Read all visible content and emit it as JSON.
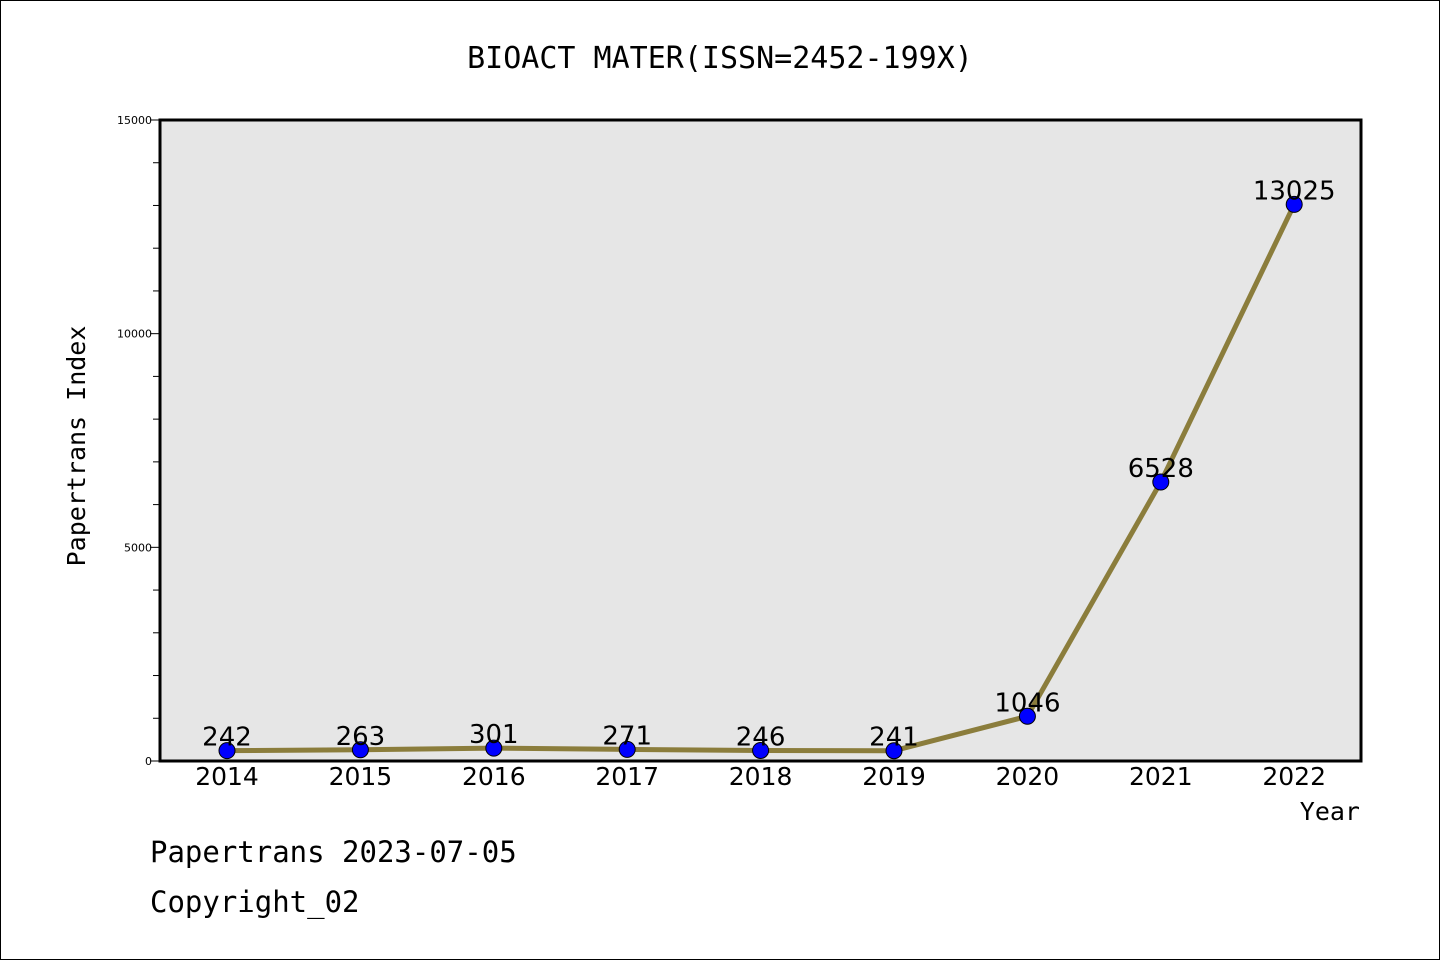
{
  "chart_data": {
    "type": "line",
    "title": "BIOACT MATER(ISSN=2452-199X)",
    "xlabel": "Year",
    "ylabel": "Papertrans Index",
    "categories": [
      "2014",
      "2015",
      "2016",
      "2017",
      "2018",
      "2019",
      "2020",
      "2021",
      "2022"
    ],
    "values": [
      242,
      263,
      301,
      271,
      246,
      241,
      1046,
      6528,
      13025
    ],
    "ylim": [
      0,
      15000
    ],
    "yticks": [
      "0",
      "5000",
      "10000",
      "15000"
    ],
    "grid": false,
    "plot_background": "#e6e6e6",
    "line_color": "#8b7d3c",
    "marker_color": "#0000ff"
  },
  "footer": {
    "line1": "Papertrans 2023-07-05",
    "line2": "Copyright_02"
  }
}
